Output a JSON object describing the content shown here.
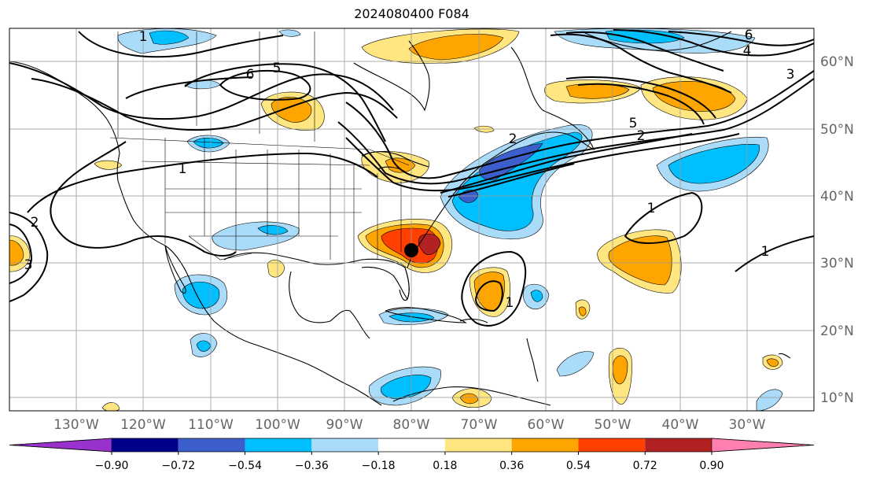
{
  "title": "2024080400 F084",
  "lon_labels": [
    "130°W",
    "120°W",
    "110°W",
    "100°W",
    "90°W",
    "80°W",
    "70°W",
    "60°W",
    "50°W",
    "40°W",
    "30°W"
  ],
  "lat_labels": [
    "60°N",
    "50°N",
    "40°N",
    "30°N",
    "20°N",
    "10°N"
  ],
  "colorbar": {
    "tick_labels": [
      "−0.90",
      "−0.72",
      "−0.54",
      "−0.36",
      "−0.18",
      "0.18",
      "0.36",
      "0.54",
      "0.72",
      "0.90"
    ],
    "colors": [
      "#9932cc",
      "#00008b",
      "#3d5fcc",
      "#00bfff",
      "#aadcfa",
      "#ffffff",
      "#ffe680",
      "#ffa500",
      "#ff4000",
      "#b22222",
      "#ff80b0"
    ]
  },
  "contour_labels": [
    "1",
    "6",
    "5",
    "1",
    "5",
    "2",
    "6",
    "4",
    "3",
    "2",
    "3",
    "1",
    "1",
    "1",
    "2"
  ],
  "marker": "black-dot"
}
